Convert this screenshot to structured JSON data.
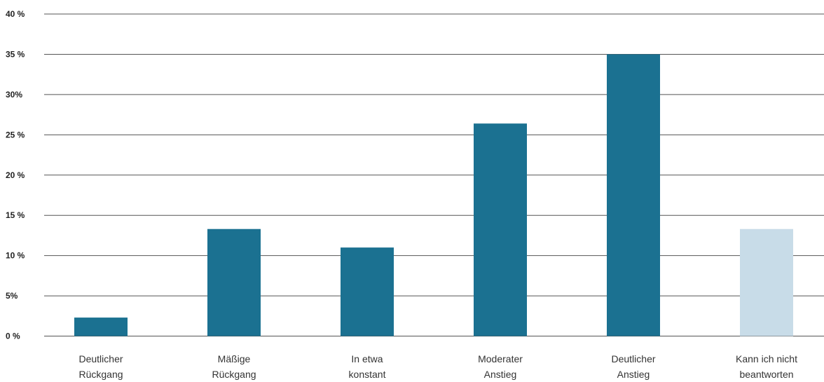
{
  "chart_data": {
    "type": "bar",
    "categories": [
      [
        "Deutlicher",
        "Rückgang"
      ],
      [
        "Mäßige",
        "Rückgang"
      ],
      [
        "In etwa",
        "konstant"
      ],
      [
        "Moderater",
        "Anstieg"
      ],
      [
        "Deutlicher",
        "Anstieg"
      ],
      [
        "Kann ich nicht",
        "beantworten"
      ]
    ],
    "series": [
      {
        "values": [
          2.3,
          13.3,
          11.0,
          26.4,
          35.0,
          13.3
        ]
      }
    ],
    "bar_colors": [
      "#1b7191",
      "#1b7191",
      "#1b7191",
      "#1b7191",
      "#1b7191",
      "#c8dce8"
    ],
    "ytick_values": [
      0,
      5,
      10,
      15,
      20,
      25,
      30,
      35,
      40
    ],
    "ytick_labels": [
      "0 %",
      "5%",
      "10 %",
      "15 %",
      "20 %",
      "25 %",
      "30%",
      "35 %",
      "40 %"
    ],
    "ylim": [
      0,
      40
    ],
    "grid": true,
    "gridline_color": "#555555",
    "title": "",
    "xlabel": "",
    "ylabel": ""
  }
}
